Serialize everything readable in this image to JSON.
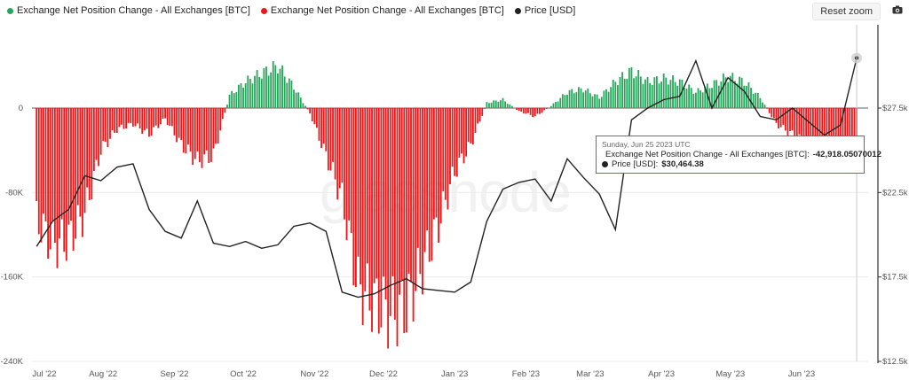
{
  "legend": {
    "items": [
      {
        "label": "Exchange Net Position Change - All Exchanges [BTC]",
        "color": "#26a65b"
      },
      {
        "label": "Exchange Net Position Change - All Exchanges [BTC]",
        "color": "#e8191b"
      },
      {
        "label": "Price [USD]",
        "color": "#222222"
      }
    ]
  },
  "toolbar": {
    "reset_label": "Reset zoom",
    "camera_icon": "camera-icon"
  },
  "watermark": "glassnode",
  "tooltip": {
    "date": "Sunday, Jun 25 2023 UTC",
    "series1_label": "Exchange Net Position Change - All Exchanges [BTC]:",
    "series1_value": "-42,918.05070012",
    "series2_label": "Price [USD]:",
    "series2_value": "$30,464.38",
    "series1_color": "#e8191b",
    "series2_color": "#222222"
  },
  "chart_data": {
    "type": "bar",
    "x_range": [
      "2022-07-01",
      "2023-06-30"
    ],
    "x_ticks": [
      "Jul '22",
      "Aug '22",
      "Sep '22",
      "Oct '22",
      "Nov '22",
      "Dec '22",
      "Jan '23",
      "Feb '23",
      "Mar '23",
      "Apr '23",
      "May '23",
      "Jun '23"
    ],
    "y_left_ticks": [
      "0",
      "-80K",
      "-160K",
      "-240K"
    ],
    "y_left_range": [
      -240000,
      0
    ],
    "y_right_ticks": [
      "$27.5k",
      "$22.5k",
      "$17.5k",
      "$12.5k"
    ],
    "y_right_range": [
      12500,
      27500
    ],
    "positive_color": "#26a65b",
    "negative_color": "#e8191b",
    "price_color": "#222222",
    "series": [
      {
        "name": "Exchange Net Position Change - All Exchanges [BTC]",
        "unit": "BTC",
        "weekly_approx": [
          {
            "x": "2022-07-03",
            "y": -105000
          },
          {
            "x": "2022-07-10",
            "y": -130000
          },
          {
            "x": "2022-07-17",
            "y": -125000
          },
          {
            "x": "2022-07-24",
            "y": -100000
          },
          {
            "x": "2022-07-31",
            "y": -40000
          },
          {
            "x": "2022-08-07",
            "y": -20000
          },
          {
            "x": "2022-08-14",
            "y": -15000
          },
          {
            "x": "2022-08-21",
            "y": -25000
          },
          {
            "x": "2022-08-28",
            "y": -10000
          },
          {
            "x": "2022-09-04",
            "y": -35000
          },
          {
            "x": "2022-09-11",
            "y": -50000
          },
          {
            "x": "2022-09-18",
            "y": -45000
          },
          {
            "x": "2022-09-25",
            "y": 12000
          },
          {
            "x": "2022-10-02",
            "y": 25000
          },
          {
            "x": "2022-10-09",
            "y": 33000
          },
          {
            "x": "2022-10-16",
            "y": 40000
          },
          {
            "x": "2022-10-23",
            "y": 20000
          },
          {
            "x": "2022-10-30",
            "y": -5000
          },
          {
            "x": "2022-11-06",
            "y": -45000
          },
          {
            "x": "2022-11-13",
            "y": -85000
          },
          {
            "x": "2022-11-20",
            "y": -170000
          },
          {
            "x": "2022-11-27",
            "y": -185000
          },
          {
            "x": "2022-12-04",
            "y": -195000
          },
          {
            "x": "2022-12-11",
            "y": -190000
          },
          {
            "x": "2022-12-18",
            "y": -150000
          },
          {
            "x": "2022-12-25",
            "y": -110000
          },
          {
            "x": "2023-01-01",
            "y": -60000
          },
          {
            "x": "2023-01-08",
            "y": -35000
          },
          {
            "x": "2023-01-15",
            "y": 5000
          },
          {
            "x": "2023-01-22",
            "y": 8000
          },
          {
            "x": "2023-01-29",
            "y": -3000
          },
          {
            "x": "2023-02-05",
            "y": -8000
          },
          {
            "x": "2023-02-12",
            "y": 2000
          },
          {
            "x": "2023-02-19",
            "y": 15000
          },
          {
            "x": "2023-02-26",
            "y": 18000
          },
          {
            "x": "2023-03-05",
            "y": 10000
          },
          {
            "x": "2023-03-12",
            "y": 25000
          },
          {
            "x": "2023-03-19",
            "y": 35000
          },
          {
            "x": "2023-03-26",
            "y": 25000
          },
          {
            "x": "2023-04-02",
            "y": 28000
          },
          {
            "x": "2023-04-09",
            "y": 25000
          },
          {
            "x": "2023-04-16",
            "y": 15000
          },
          {
            "x": "2023-04-23",
            "y": 22000
          },
          {
            "x": "2023-04-30",
            "y": 30000
          },
          {
            "x": "2023-05-07",
            "y": 25000
          },
          {
            "x": "2023-05-14",
            "y": 10000
          },
          {
            "x": "2023-05-21",
            "y": -15000
          },
          {
            "x": "2023-05-28",
            "y": -25000
          },
          {
            "x": "2023-06-04",
            "y": -35000
          },
          {
            "x": "2023-06-11",
            "y": -30000
          },
          {
            "x": "2023-06-18",
            "y": -35000
          },
          {
            "x": "2023-06-25",
            "y": -42918
          }
        ]
      },
      {
        "name": "Price [USD]",
        "unit": "USD",
        "weekly_approx": [
          {
            "x": "2022-07-03",
            "y": 19300
          },
          {
            "x": "2022-07-10",
            "y": 20800
          },
          {
            "x": "2022-07-17",
            "y": 21500
          },
          {
            "x": "2022-07-24",
            "y": 23500
          },
          {
            "x": "2022-07-31",
            "y": 23200
          },
          {
            "x": "2022-08-07",
            "y": 24000
          },
          {
            "x": "2022-08-14",
            "y": 24200
          },
          {
            "x": "2022-08-21",
            "y": 21500
          },
          {
            "x": "2022-08-28",
            "y": 20200
          },
          {
            "x": "2022-09-04",
            "y": 19800
          },
          {
            "x": "2022-09-11",
            "y": 22000
          },
          {
            "x": "2022-09-18",
            "y": 19500
          },
          {
            "x": "2022-09-25",
            "y": 19300
          },
          {
            "x": "2022-10-02",
            "y": 19600
          },
          {
            "x": "2022-10-09",
            "y": 19200
          },
          {
            "x": "2022-10-16",
            "y": 19400
          },
          {
            "x": "2022-10-23",
            "y": 20500
          },
          {
            "x": "2022-10-30",
            "y": 20700
          },
          {
            "x": "2022-11-06",
            "y": 20200
          },
          {
            "x": "2022-11-13",
            "y": 16600
          },
          {
            "x": "2022-11-20",
            "y": 16300
          },
          {
            "x": "2022-11-27",
            "y": 16500
          },
          {
            "x": "2022-12-04",
            "y": 17000
          },
          {
            "x": "2022-12-11",
            "y": 17400
          },
          {
            "x": "2022-12-18",
            "y": 16800
          },
          {
            "x": "2022-12-25",
            "y": 16700
          },
          {
            "x": "2023-01-01",
            "y": 16600
          },
          {
            "x": "2023-01-08",
            "y": 17200
          },
          {
            "x": "2023-01-15",
            "y": 20800
          },
          {
            "x": "2023-01-22",
            "y": 22700
          },
          {
            "x": "2023-01-29",
            "y": 23100
          },
          {
            "x": "2023-02-05",
            "y": 23300
          },
          {
            "x": "2023-02-12",
            "y": 22000
          },
          {
            "x": "2023-02-19",
            "y": 24500
          },
          {
            "x": "2023-02-26",
            "y": 23400
          },
          {
            "x": "2023-03-05",
            "y": 22400
          },
          {
            "x": "2023-03-12",
            "y": 20300
          },
          {
            "x": "2023-03-19",
            "y": 26800
          },
          {
            "x": "2023-03-26",
            "y": 27500
          },
          {
            "x": "2023-04-02",
            "y": 28000
          },
          {
            "x": "2023-04-09",
            "y": 28200
          },
          {
            "x": "2023-04-16",
            "y": 30300
          },
          {
            "x": "2023-04-23",
            "y": 27500
          },
          {
            "x": "2023-04-30",
            "y": 29300
          },
          {
            "x": "2023-05-07",
            "y": 28500
          },
          {
            "x": "2023-05-14",
            "y": 27000
          },
          {
            "x": "2023-05-21",
            "y": 26800
          },
          {
            "x": "2023-05-28",
            "y": 27500
          },
          {
            "x": "2023-06-04",
            "y": 26700
          },
          {
            "x": "2023-06-11",
            "y": 25900
          },
          {
            "x": "2023-06-18",
            "y": 26500
          },
          {
            "x": "2023-06-25",
            "y": 30464
          }
        ]
      }
    ],
    "grid": true,
    "legend_position": "top-left"
  }
}
